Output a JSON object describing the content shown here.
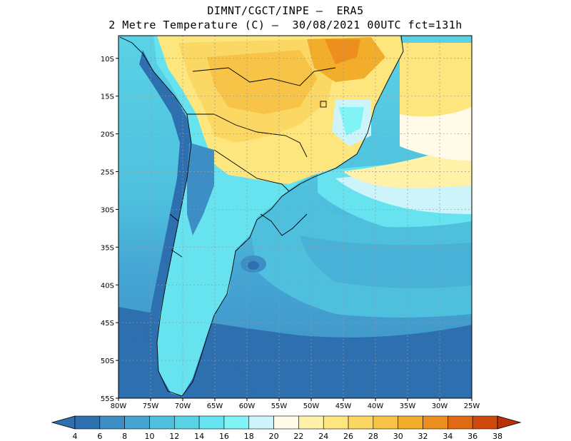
{
  "header": {
    "line1": "DIMNT/CGCT/INPE –  ERA5",
    "line2": "2 Metre Temperature (C) –  30/08/2021 00UTC fct=131h"
  },
  "map": {
    "lon_ticks": [
      "80W",
      "75W",
      "70W",
      "65W",
      "60W",
      "55W",
      "50W",
      "45W",
      "40W",
      "35W",
      "30W",
      "25W"
    ],
    "lat_ticks": [
      "10S",
      "15S",
      "20S",
      "25S",
      "30S",
      "35S",
      "40S",
      "45S",
      "50S",
      "55S"
    ],
    "lon_range_deg": [
      -80,
      -25
    ],
    "lat_range_deg": [
      -55,
      -7
    ]
  },
  "colorbar": {
    "levels": [
      "4",
      "6",
      "8",
      "10",
      "12",
      "14",
      "16",
      "18",
      "20",
      "22",
      "24",
      "26",
      "28",
      "30",
      "32",
      "34",
      "36",
      "38"
    ],
    "colors": [
      "#2e6fb0",
      "#3c8ec4",
      "#45a6d4",
      "#4ec0de",
      "#5ad2e6",
      "#66e3ef",
      "#7ff3f6",
      "#cdf3fb",
      "#fffbe8",
      "#fff2a8",
      "#fde67e",
      "#fbd764",
      "#f7c447",
      "#f2ad2b",
      "#ec8f1e",
      "#e06a13",
      "#cf480c",
      "#b93106"
    ]
  },
  "palette": {
    "ocean_cold": "#2e6fb0",
    "ocean_mid": "#45a6d4",
    "ocean_warm": "#66e3ef",
    "land_warm": "#fbd764",
    "land_hot": "#f2ad2b",
    "gridline": "#9a9a9a"
  }
}
